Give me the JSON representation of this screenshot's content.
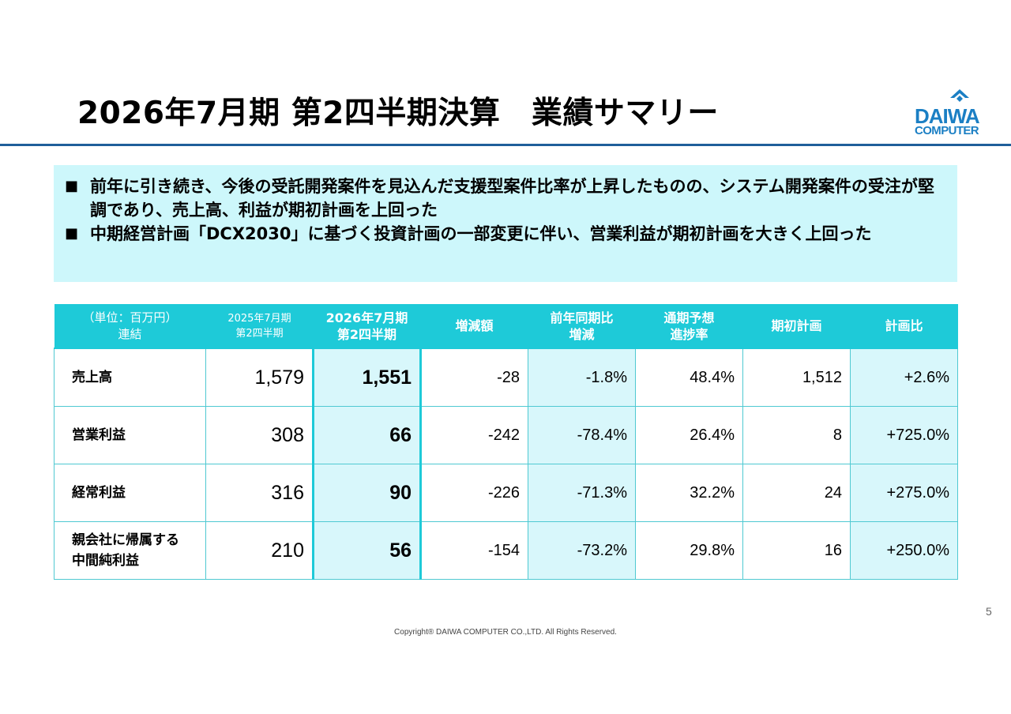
{
  "title": "2026年7月期 第2四半期決算　業績サマリー",
  "logo": {
    "daiwa": "DAIWA",
    "computer": "COMPUTER",
    "color": "#1b7fc4"
  },
  "summary": {
    "bullets": [
      "前年に引き続き、今後の受託開発案件を見込んだ支援型案件比率が上昇したものの、システム開発案件の受注が堅調であり、売上高、利益が期初計画を上回った",
      "中期経営計画「DCX2030」に基づく投資計画の一部変更に伴い、営業利益が期初計画を大きく上回った"
    ],
    "bullet_marker": "■",
    "background": "#cdf7fb"
  },
  "table": {
    "header_color": "#1ecad8",
    "headers": {
      "unit": "（単位：百万円）",
      "consolidated": "連結",
      "prev_line1": "2025年7月期",
      "prev_line2": "第2四半期",
      "cur_line1": "2026年7月期",
      "cur_line2": "第2四半期",
      "change": "増減額",
      "yoy_line1": "前年同期比",
      "yoy_line2": "増減",
      "progress_line1": "通期予想",
      "progress_line2": "進捗率",
      "plan": "期初計画",
      "plan_ratio": "計画比"
    },
    "rows": [
      {
        "label1": "売上高",
        "label2": "",
        "prev": "1,579",
        "cur": "1,551",
        "change": "-28",
        "yoy": "-1.8%",
        "progress": "48.4%",
        "plan": "1,512",
        "plan_ratio": "+2.6%"
      },
      {
        "label1": "営業利益",
        "label2": "",
        "prev": "308",
        "cur": "66",
        "change": "-242",
        "yoy": "-78.4%",
        "progress": "26.4%",
        "plan": "8",
        "plan_ratio": "+725.0%"
      },
      {
        "label1": "経常利益",
        "label2": "",
        "prev": "316",
        "cur": "90",
        "change": "-226",
        "yoy": "-71.3%",
        "progress": "32.2%",
        "plan": "24",
        "plan_ratio": "+275.0%"
      },
      {
        "label1": "親会社に帰属する",
        "label2": "中間純利益",
        "prev": "210",
        "cur": "56",
        "change": "-154",
        "yoy": "-73.2%",
        "progress": "29.8%",
        "plan": "16",
        "plan_ratio": "+250.0%"
      }
    ]
  },
  "page_number": "5",
  "copyright": "Copyright® DAIWA COMPUTER CO.,LTD. All Rights Reserved."
}
